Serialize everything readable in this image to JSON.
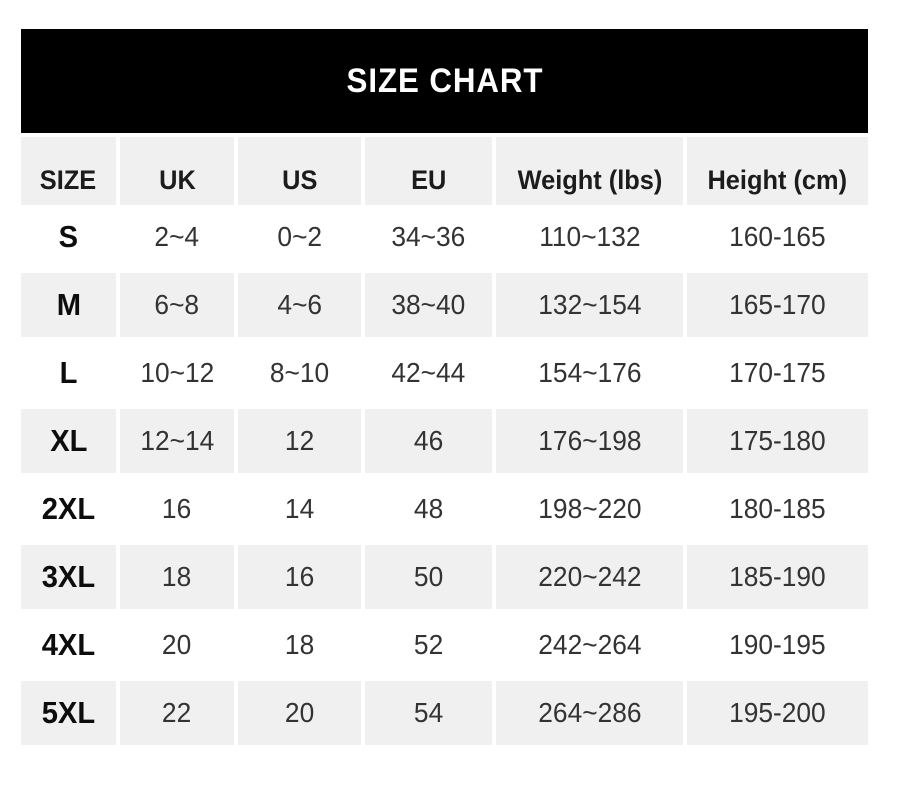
{
  "title": "SIZE CHART",
  "colors": {
    "title_bg": "#000000",
    "title_text": "#ffffff",
    "band_gray": "#f0f0f0",
    "body_text": "#333333",
    "bold_text": "#0d0d0d"
  },
  "chart_data": {
    "type": "table",
    "title": "SIZE CHART",
    "columns": [
      "SIZE",
      "UK",
      "US",
      "EU",
      "Weight (lbs)",
      "Height (cm)"
    ],
    "rows": [
      [
        "S",
        "2~4",
        "0~2",
        "34~36",
        "110~132",
        "160-165"
      ],
      [
        "M",
        "6~8",
        "4~6",
        "38~40",
        "132~154",
        "165-170"
      ],
      [
        "L",
        "10~12",
        "8~10",
        "42~44",
        "154~176",
        "170-175"
      ],
      [
        "XL",
        "12~14",
        "12",
        "46",
        "176~198",
        "175-180"
      ],
      [
        "2XL",
        "16",
        "14",
        "48",
        "198~220",
        "180-185"
      ],
      [
        "3XL",
        "18",
        "16",
        "50",
        "220~242",
        "185-190"
      ],
      [
        "4XL",
        "20",
        "18",
        "52",
        "242~264",
        "190-195"
      ],
      [
        "5XL",
        "22",
        "20",
        "54",
        "264~286",
        "195-200"
      ]
    ],
    "layout": {
      "legend": "none",
      "grid": "off",
      "alternating_row_shading": true
    }
  }
}
